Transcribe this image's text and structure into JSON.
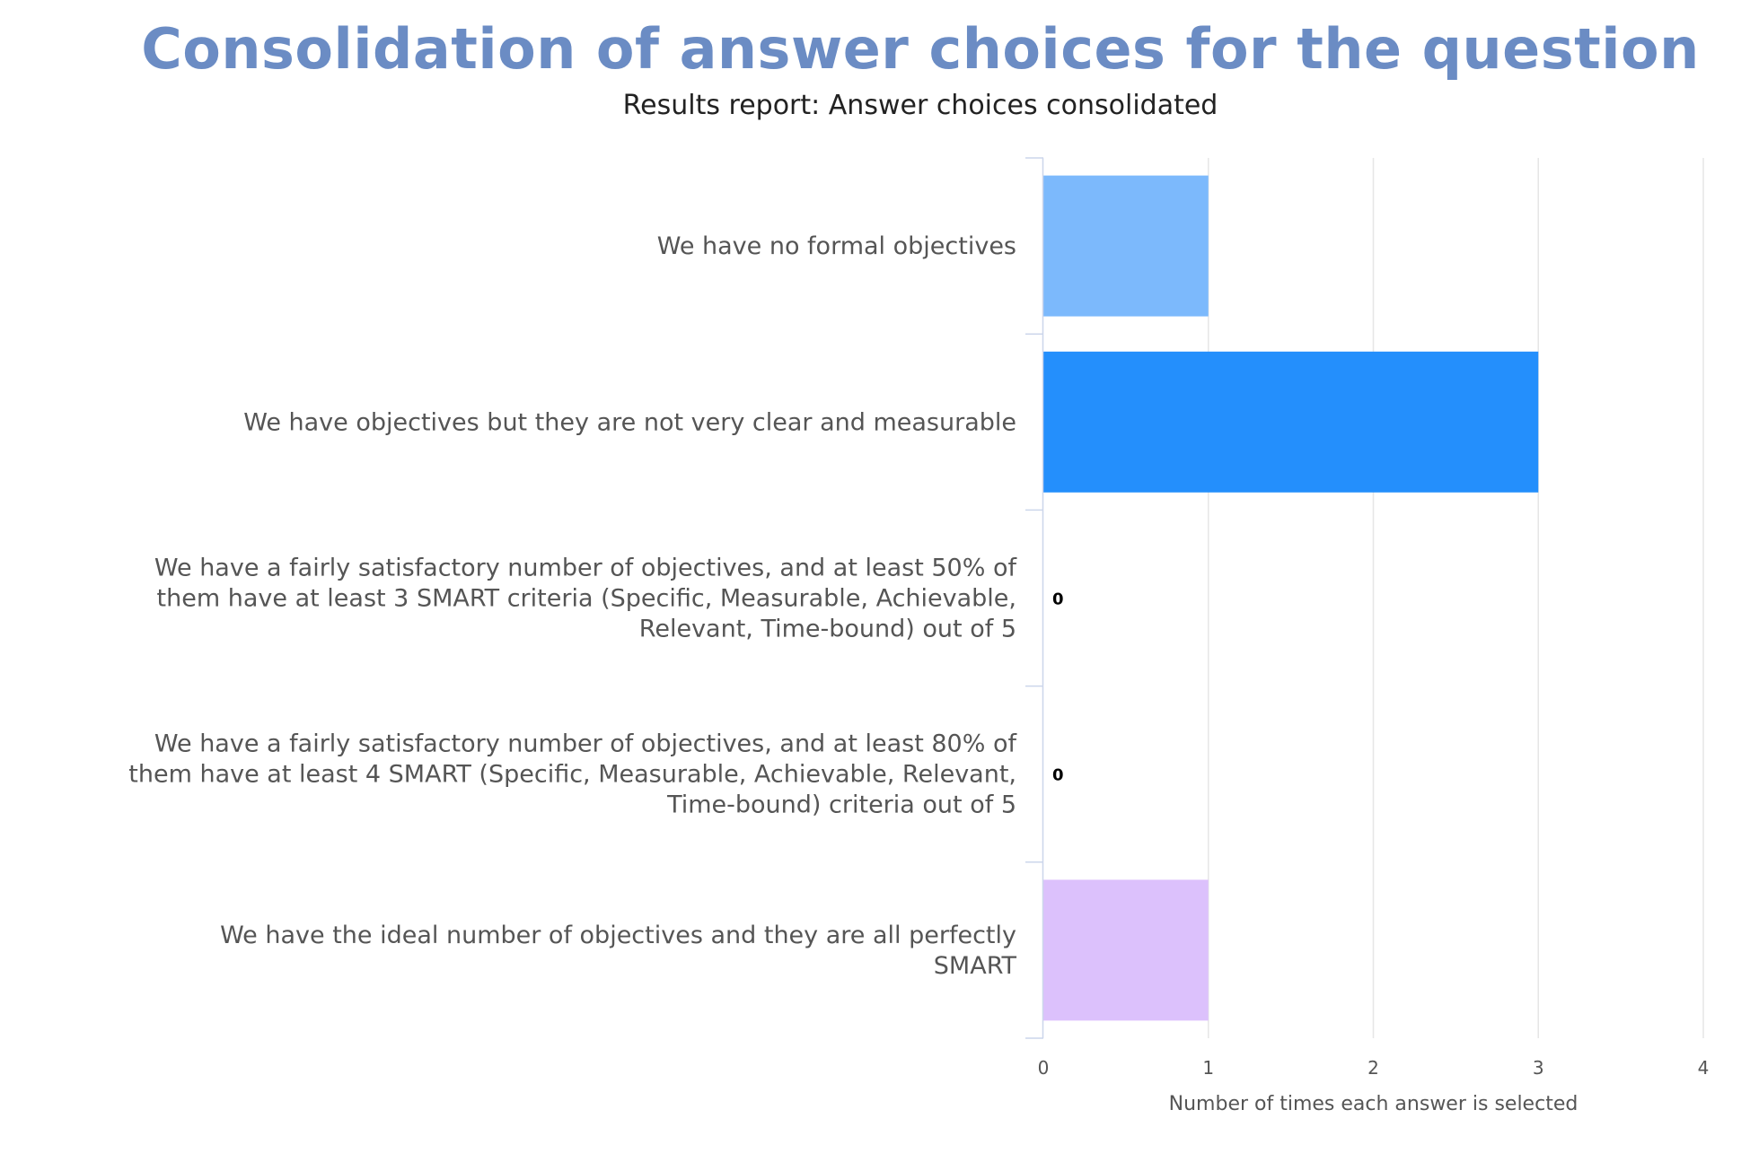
{
  "chart_data": {
    "type": "bar",
    "orientation": "horizontal",
    "title": "Consolidation of answer choices for the question",
    "subtitle": "Results report: Answer choices consolidated",
    "xlabel": "Number of times each answer is selected",
    "ylabel": "",
    "xlim": [
      0,
      4
    ],
    "x_ticks": [
      "0",
      "1",
      "2",
      "3",
      "4"
    ],
    "grid": true,
    "legend": "none",
    "categories": [
      [
        "We have no formal objectives"
      ],
      [
        "We have objectives but they are not very clear and measurable"
      ],
      [
        "We have a fairly satisfactory number of objectives, and at least 50% of",
        "them have at least 3 SMART criteria (Specific, Measurable, Achievable,",
        "Relevant, Time-bound) out of 5"
      ],
      [
        "We have a fairly satisfactory number of objectives, and at least 80% of",
        "them have at least 4 SMART (Specific, Measurable, Achievable, Relevant,",
        "Time-bound) criteria out of 5"
      ],
      [
        "We have the ideal number of objectives and they are all perfectly",
        "SMART"
      ]
    ],
    "values": [
      1,
      3,
      0,
      0,
      1
    ],
    "data_labels": [
      "",
      "",
      "0",
      "0",
      ""
    ],
    "colors": [
      "#7cb9fc",
      "#248ffc",
      "#9ad5f6",
      "#7e8bff",
      "#dcc1fc"
    ]
  }
}
